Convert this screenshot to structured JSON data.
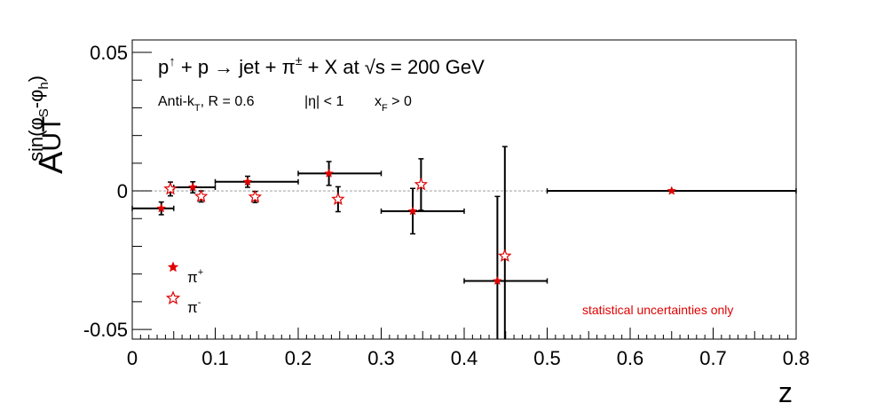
{
  "chart_data": {
    "type": "scatter",
    "title": {
      "p": "p",
      "arrow": "↑",
      "rest1": " + p ",
      "to": "→",
      "rest2": " jet + π",
      "pm": "±",
      "rest3": " + X at ",
      "sqrt": "√",
      "rest4": "s = 200 GeV"
    },
    "subtitle": {
      "antik": "Anti-k",
      "antik_sub": "T",
      "radius": ", R = 0.6",
      "eta": "|η| < 1",
      "xf": "x",
      "xf_sub": "F",
      "xf_rest": " > 0"
    },
    "ylabel": {
      "main": "A",
      "sub": "UT",
      "sup_pre": "sin(φ",
      "sup_s": "S",
      "sup_mid": "-φ",
      "sup_h": "h",
      "sup_post": ")"
    },
    "xlabel": "z",
    "xlim": [
      0,
      0.8
    ],
    "ylim": [
      -0.0535,
      0.0545
    ],
    "xticks": [
      "0",
      "0.1",
      "0.2",
      "0.3",
      "0.4",
      "0.5",
      "0.6",
      "0.7",
      "0.8"
    ],
    "xtick_values": [
      0,
      0.1,
      0.2,
      0.3,
      0.4,
      0.5,
      0.6,
      0.7,
      0.8
    ],
    "yticks": [
      "-0.05",
      "0",
      "0.05"
    ],
    "ytick_values": [
      -0.05,
      0,
      0.05
    ],
    "zero_line": true,
    "annotation": "statistical uncertainties only",
    "annotation_color": "#e00000",
    "series": [
      {
        "name": "π",
        "sup": "+",
        "marker": "filled-star",
        "color": "#e00000",
        "points": [
          {
            "x": 0.035,
            "y": -0.0063,
            "xlo": 0.0,
            "xhi": 0.05,
            "yerr": 0.0023
          },
          {
            "x": 0.073,
            "y": 0.0013,
            "xlo": 0.05,
            "xhi": 0.1,
            "yerr": 0.002
          },
          {
            "x": 0.139,
            "y": 0.0033,
            "xlo": 0.1,
            "xhi": 0.2,
            "yerr": 0.002
          },
          {
            "x": 0.237,
            "y": 0.0063,
            "xlo": 0.2,
            "xhi": 0.3,
            "yerr": 0.0043
          },
          {
            "x": 0.338,
            "y": -0.0073,
            "xlo": 0.3,
            "xhi": 0.4,
            "yerr": 0.0082
          },
          {
            "x": 0.44,
            "y": -0.0325,
            "xlo": 0.4,
            "xhi": 0.5,
            "yerr": 0.0305
          },
          {
            "x": 0.65,
            "y": 0.0,
            "xlo": 0.5,
            "xhi": 0.8,
            "yerr": 0.0
          }
        ]
      },
      {
        "name": "π",
        "sup": "-",
        "marker": "open-star",
        "color": "#e00000",
        "points": [
          {
            "x": 0.046,
            "y": 0.0007,
            "yerr": 0.0025
          },
          {
            "x": 0.083,
            "y": -0.002,
            "yerr": 0.002
          },
          {
            "x": 0.148,
            "y": -0.0022,
            "yerr": 0.002
          },
          {
            "x": 0.248,
            "y": -0.003,
            "yerr": 0.0045
          },
          {
            "x": 0.348,
            "y": 0.0023,
            "yerr": 0.0093
          },
          {
            "x": 0.449,
            "y": -0.0235,
            "yerr": 0.0395
          }
        ]
      }
    ],
    "legend_position": "bottom-left"
  }
}
